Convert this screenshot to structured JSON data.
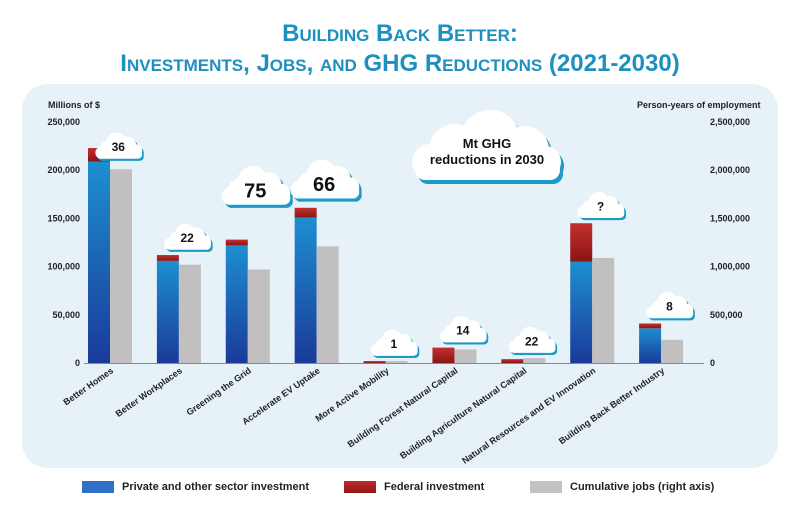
{
  "title_line1": "Building Back Better:",
  "title_line2": "Investments, Jobs, and GHG Reductions (2021-2030)",
  "left_axis_title": "Millions of $",
  "right_axis_title": "Person-years of employment",
  "legend": [
    {
      "label": "Private and other sector investment",
      "color": "#2f6fc6"
    },
    {
      "label": "Federal investment",
      "color": "#b02020"
    },
    {
      "label": "Cumulative jobs (right axis)",
      "color": "#c2c2c2"
    }
  ],
  "mt_cloud_text": [
    "Mt GHG",
    "reductions in 2030"
  ],
  "colors": {
    "private": "#1f5fb8",
    "federal": "#a81d1d",
    "jobs": "#c2bfc1",
    "cloud_shadow": "#1d9ac7"
  },
  "chart_data": {
    "type": "bar",
    "categories": [
      "Better Homes",
      "Better Workplaces",
      "Greening the Grid",
      "Accelerate EV Uptake",
      "More Active Mobility",
      "Building Forest Natural Capital",
      "Building Agriculture Natural Capital",
      "Natural Resources and EV Innovation",
      "Building Back Better Industry"
    ],
    "series": [
      {
        "name": "Private and other sector investment",
        "axis": "left",
        "stack": "investment",
        "values": [
          209000,
          106000,
          122000,
          151000,
          0,
          0,
          0,
          105000,
          36000
        ]
      },
      {
        "name": "Federal investment",
        "axis": "left",
        "stack": "investment",
        "values": [
          14000,
          6000,
          6000,
          10000,
          2000,
          16000,
          4000,
          40000,
          5000
        ]
      },
      {
        "name": "Cumulative jobs (right axis)",
        "axis": "right",
        "values": [
          2010000,
          1020000,
          970000,
          1210000,
          20000,
          140000,
          50000,
          1090000,
          240000
        ]
      }
    ],
    "ghg_labels": [
      "36",
      "22",
      "75",
      "66",
      "1",
      "14",
      "22",
      "?",
      "8"
    ],
    "left_ticks": [
      "0",
      "50,000",
      "100,000",
      "150,000",
      "200,000",
      "250,000"
    ],
    "right_ticks": [
      "0",
      "500,000",
      "1,000,000",
      "1,500,000",
      "2,000,000",
      "2,500,000"
    ],
    "ylim_left": [
      0,
      250000
    ],
    "ylim_right": [
      0,
      2500000
    ],
    "legend_position": "bottom"
  }
}
